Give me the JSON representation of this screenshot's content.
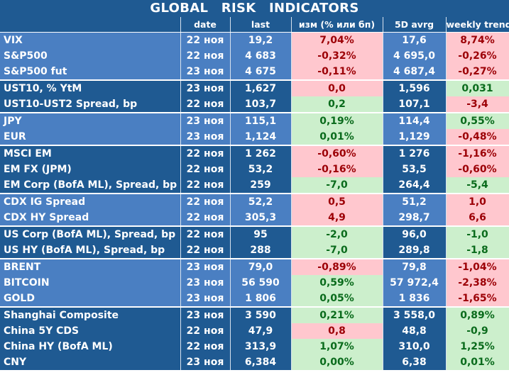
{
  "title": "GLOBAL  RISK  INDICATORS",
  "headers": [
    "",
    "date",
    "last",
    "изм (% или бп)",
    "5D avrg",
    "weekly trend"
  ],
  "rows": [
    {
      "name": "VIX",
      "date": "22 ноя",
      "last": "19,2",
      "chg": "7,04%",
      "chg_sign": "neg",
      "avg": "17,6",
      "trend": "8,74%",
      "trend_sign": "neg",
      "shade": "light",
      "group_start": false
    },
    {
      "name": "S&P500",
      "date": "22 ноя",
      "last": "4 683",
      "chg": "-0,32%",
      "chg_sign": "neg",
      "avg": "4 695,0",
      "trend": "-0,26%",
      "trend_sign": "neg",
      "shade": "light",
      "group_start": false
    },
    {
      "name": "S&P500 fut",
      "date": "23 ноя",
      "last": "4 675",
      "chg": "-0,11%",
      "chg_sign": "neg",
      "avg": "4 687,4",
      "trend": "-0,27%",
      "trend_sign": "neg",
      "shade": "light",
      "group_start": false
    },
    {
      "name": "UST10, % YtM",
      "date": "23 ноя",
      "last": "1,627",
      "chg": "0,0",
      "chg_sign": "neg",
      "avg": "1,596",
      "trend": "0,031",
      "trend_sign": "pos",
      "shade": "dark",
      "group_start": true
    },
    {
      "name": "UST10-UST2 Spread, bp",
      "date": "22 ноя",
      "last": "103,7",
      "chg": "0,2",
      "chg_sign": "pos",
      "avg": "107,1",
      "trend": "-3,4",
      "trend_sign": "neg",
      "shade": "dark",
      "group_start": false
    },
    {
      "name": "JPY",
      "date": "23 ноя",
      "last": "115,1",
      "chg": "0,19%",
      "chg_sign": "pos",
      "avg": "114,4",
      "trend": "0,55%",
      "trend_sign": "pos",
      "shade": "light",
      "group_start": true
    },
    {
      "name": "EUR",
      "date": "23 ноя",
      "last": "1,124",
      "chg": "0,01%",
      "chg_sign": "pos",
      "avg": "1,129",
      "trend": "-0,48%",
      "trend_sign": "neg",
      "shade": "light",
      "group_start": false
    },
    {
      "name": "MSCI EM",
      "date": "22 ноя",
      "last": "1 262",
      "chg": "-0,60%",
      "chg_sign": "neg",
      "avg": "1 276",
      "trend": "-1,16%",
      "trend_sign": "neg",
      "shade": "dark",
      "group_start": true
    },
    {
      "name": "EM FX (JPM)",
      "date": "22 ноя",
      "last": "53,2",
      "chg": "-0,16%",
      "chg_sign": "neg",
      "avg": "53,5",
      "trend": "-0,60%",
      "trend_sign": "neg",
      "shade": "dark",
      "group_start": false
    },
    {
      "name": "EM Corp (BofA ML), Spread, bp",
      "date": "22 ноя",
      "last": "259",
      "chg": "-7,0",
      "chg_sign": "pos",
      "avg": "264,4",
      "trend": "-5,4",
      "trend_sign": "pos",
      "shade": "dark",
      "group_start": false
    },
    {
      "name": "CDX IG Spread",
      "date": "22 ноя",
      "last": "52,2",
      "chg": "0,5",
      "chg_sign": "neg",
      "avg": "51,2",
      "trend": "1,0",
      "trend_sign": "neg",
      "shade": "light",
      "group_start": true
    },
    {
      "name": "CDX HY Spread",
      "date": "22 ноя",
      "last": "305,3",
      "chg": "4,9",
      "chg_sign": "neg",
      "avg": "298,7",
      "trend": "6,6",
      "trend_sign": "neg",
      "shade": "light",
      "group_start": false
    },
    {
      "name": "US Corp (BofA ML), Spread, bp",
      "date": "22 ноя",
      "last": "95",
      "chg": "-2,0",
      "chg_sign": "pos",
      "avg": "96,0",
      "trend": "-1,0",
      "trend_sign": "pos",
      "shade": "dark",
      "group_start": true
    },
    {
      "name": "US HY (BofA ML), Spread, bp",
      "date": "22 ноя",
      "last": "288",
      "chg": "-7,0",
      "chg_sign": "pos",
      "avg": "289,8",
      "trend": "-1,8",
      "trend_sign": "pos",
      "shade": "dark",
      "group_start": false
    },
    {
      "name": "BRENT",
      "date": "23 ноя",
      "last": "79,0",
      "chg": "-0,89%",
      "chg_sign": "neg",
      "avg": "79,8",
      "trend": "-1,04%",
      "trend_sign": "neg",
      "shade": "light",
      "group_start": true
    },
    {
      "name": "BITCOIN",
      "date": "23 ноя",
      "last": "56 590",
      "chg": "0,59%",
      "chg_sign": "pos",
      "avg": "57 972,4",
      "trend": "-2,38%",
      "trend_sign": "neg",
      "shade": "light",
      "group_start": false
    },
    {
      "name": "GOLD",
      "date": "23 ноя",
      "last": "1 806",
      "chg": "0,05%",
      "chg_sign": "pos",
      "avg": "1 836",
      "trend": "-1,65%",
      "trend_sign": "neg",
      "shade": "light",
      "group_start": false
    },
    {
      "name": "Shanghai Composite",
      "date": "23 ноя",
      "last": "3 590",
      "chg": "0,21%",
      "chg_sign": "pos",
      "avg": "3 558,0",
      "trend": "0,89%",
      "trend_sign": "pos",
      "shade": "dark",
      "group_start": true
    },
    {
      "name": "China 5Y CDS",
      "date": "22 ноя",
      "last": "47,9",
      "chg": "0,8",
      "chg_sign": "neg",
      "avg": "48,8",
      "trend": "-0,9",
      "trend_sign": "pos",
      "shade": "dark",
      "group_start": false
    },
    {
      "name": "China HY (BofA ML)",
      "date": "22 ноя",
      "last": "313,9",
      "chg": "1,07%",
      "chg_sign": "pos",
      "avg": "310,0",
      "trend": "1,25%",
      "trend_sign": "pos",
      "shade": "dark",
      "group_start": false
    },
    {
      "name": "CNY",
      "date": "23 ноя",
      "last": "6,384",
      "chg": "0,00%",
      "chg_sign": "pos",
      "avg": "6,38",
      "trend": "0,01%",
      "trend_sign": "pos",
      "shade": "dark",
      "group_start": false
    }
  ],
  "colors": {
    "header_bg": "#1f5a92",
    "row_light": "#4a7fc2",
    "row_dark": "#1f5a92",
    "positive_bg": "#ccefcc",
    "positive_text": "#0a6b1c",
    "negative_bg": "#ffc7ce",
    "negative_text": "#9c0006"
  }
}
